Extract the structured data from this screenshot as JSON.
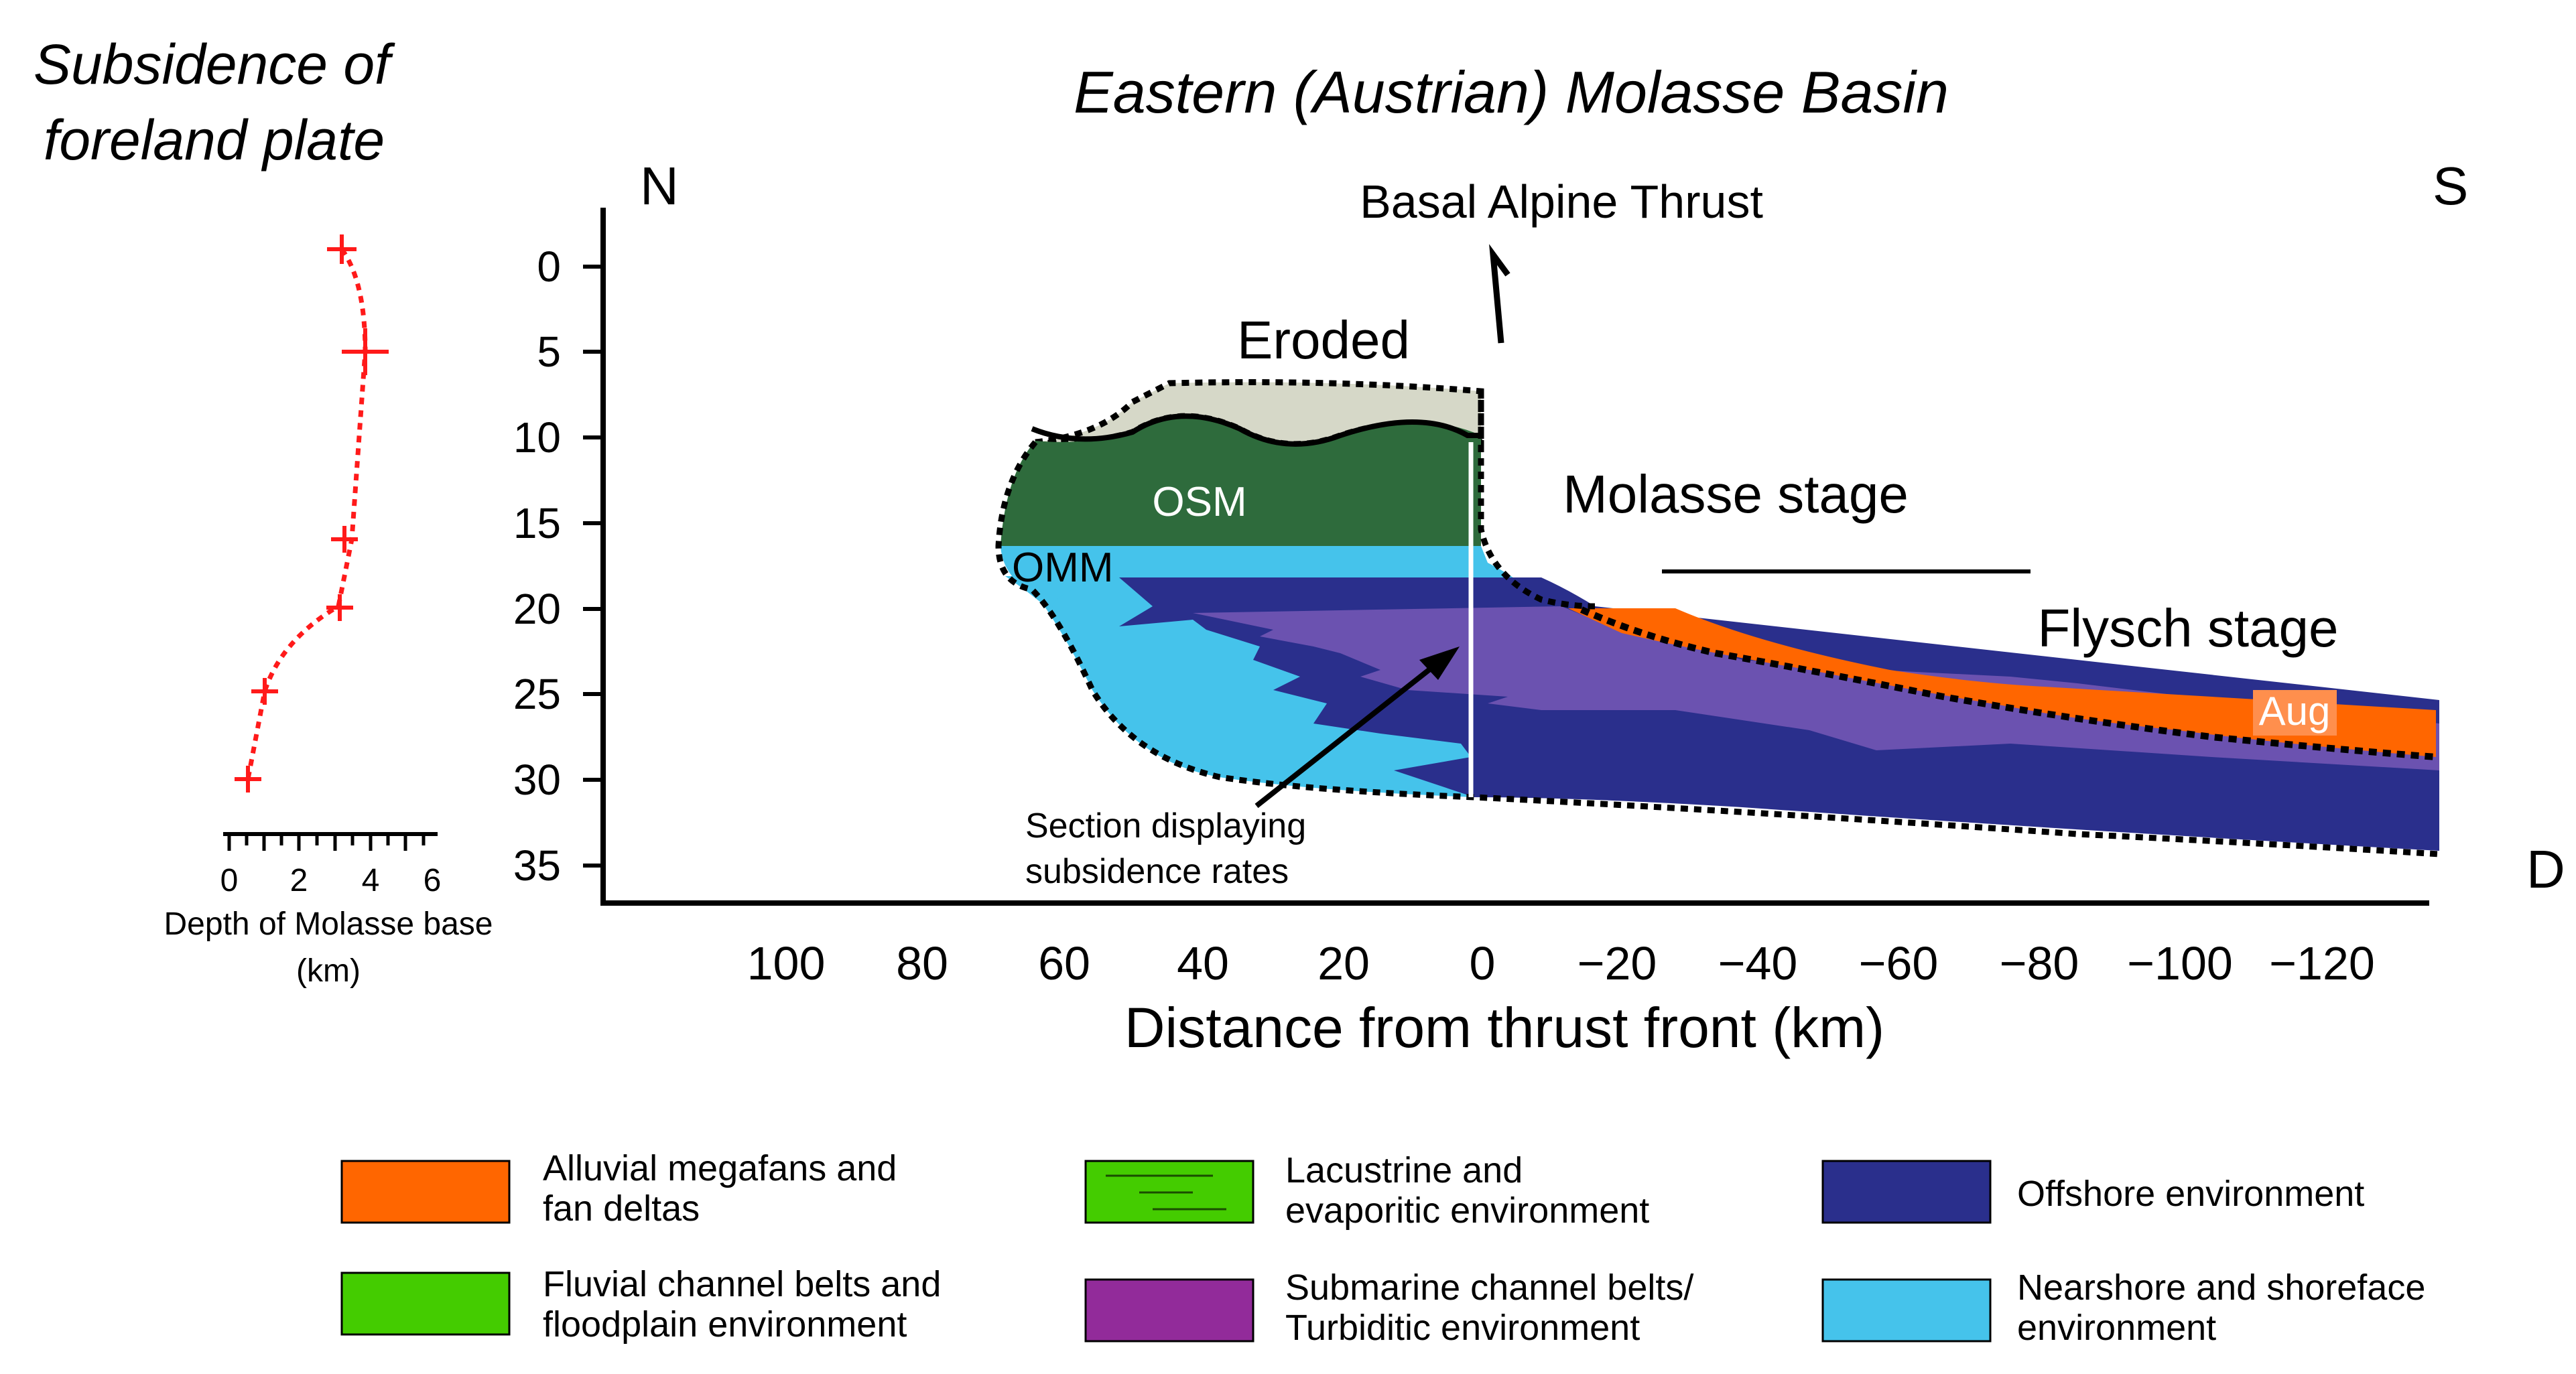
{
  "left_panel": {
    "title_line1": "Subsidence of",
    "title_line2": "foreland plate",
    "x_ticks": [
      "0",
      "2",
      "4",
      "6"
    ],
    "x_label_line1": "Depth of Molasse base",
    "x_label_line2": "(km)",
    "curve_color": "#ff1a1a"
  },
  "main": {
    "title": "Eastern (Austrian) Molasse Basin",
    "north_label": "N",
    "south_label": "S",
    "depth_axis_label": "D",
    "y_ticks": [
      "0",
      "5",
      "10",
      "15",
      "20",
      "25",
      "30",
      "35"
    ],
    "x_ticks": [
      "100",
      "80",
      "60",
      "40",
      "20",
      "0",
      "−20",
      "−40",
      "−60",
      "−80",
      "−100",
      "−120"
    ],
    "x_label": "Distance from thrust front (km)",
    "annotations": {
      "thrust": "Basal Alpine Thrust",
      "eroded": "Eroded",
      "osm": "OSM",
      "omm": "OMM",
      "molasse_stage": "Molasse stage",
      "flysch_stage": "Flysch stage",
      "aug": "Aug",
      "section_line1": "Section displaying",
      "section_line2": "subsidence rates"
    }
  },
  "legend": {
    "items": [
      {
        "line1": "Alluvial megafans and",
        "line2": "fan deltas",
        "color": "#ff6600"
      },
      {
        "line1": "Lacustrine and",
        "line2": "evaporitic environment",
        "color": "#44cc00"
      },
      {
        "line1": "Offshore environment",
        "line2": "",
        "color": "#2a2f8c"
      },
      {
        "line1": "Fluvial channel belts and",
        "line2": "floodplain environment",
        "color": "#44cc00"
      },
      {
        "line1": "Submarine channel belts/",
        "line2": "Turbiditic environment",
        "color": "#922b9a"
      },
      {
        "line1": "Nearshore and shoreface",
        "line2": "environment",
        "color": "#45c3eb"
      }
    ]
  },
  "colors": {
    "eroded": "#d6d8c8",
    "osm_fill": "#2e6b3c",
    "nearshore": "#45c3eb",
    "offshore": "#2a2f8c",
    "turbidite": "#6b52b0",
    "alluvial": "#ff6600"
  }
}
